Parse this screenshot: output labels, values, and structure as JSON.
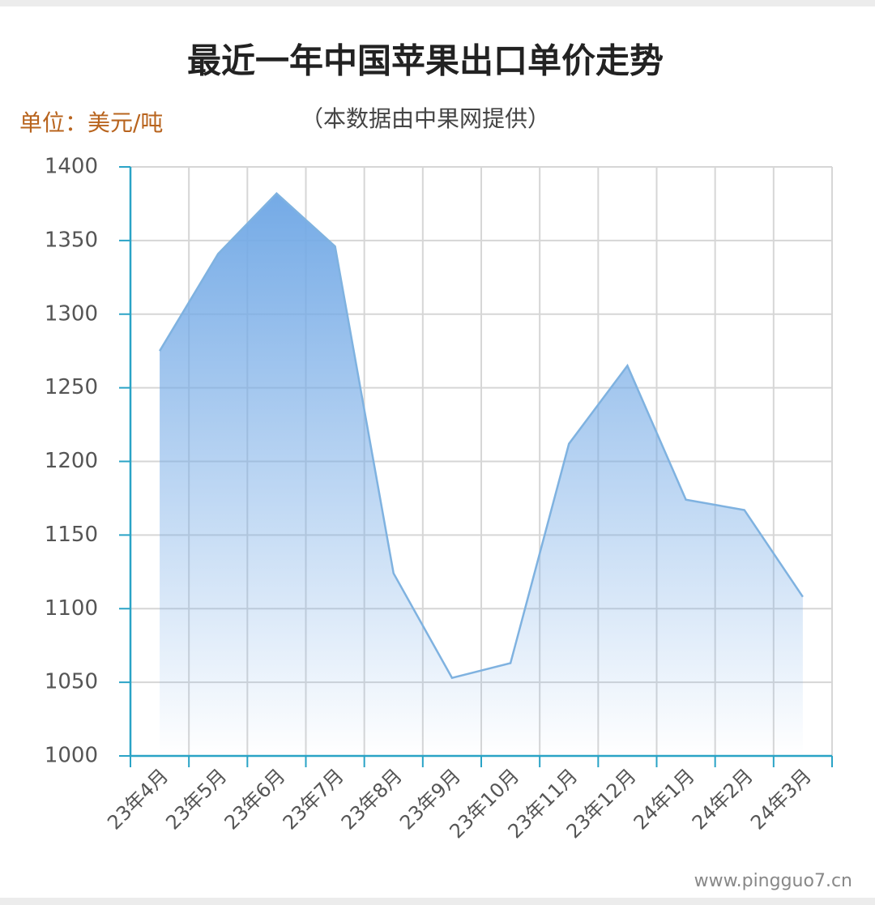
{
  "chart_data": {
    "type": "area",
    "title": "最近一年中国苹果出口单价走势",
    "subtitle": "（本数据由中果网提供）",
    "unit": "单位：美元/吨",
    "watermark": "www.pingguo7.cn",
    "categories": [
      "23年4月",
      "23年5月",
      "23年6月",
      "23年7月",
      "23年8月",
      "23年9月",
      "23年10月",
      "23年11月",
      "23年12月",
      "24年1月",
      "24年2月",
      "24年3月"
    ],
    "values": [
      1275,
      1341,
      1382,
      1346,
      1124,
      1053,
      1063,
      1212,
      1265,
      1174,
      1167,
      1108
    ],
    "color": "#7fb2e0",
    "ylim": [
      1000,
      1400
    ],
    "yticks": [
      1000,
      1050,
      1100,
      1150,
      1200,
      1250,
      1300,
      1350,
      1400
    ],
    "grid": true
  }
}
